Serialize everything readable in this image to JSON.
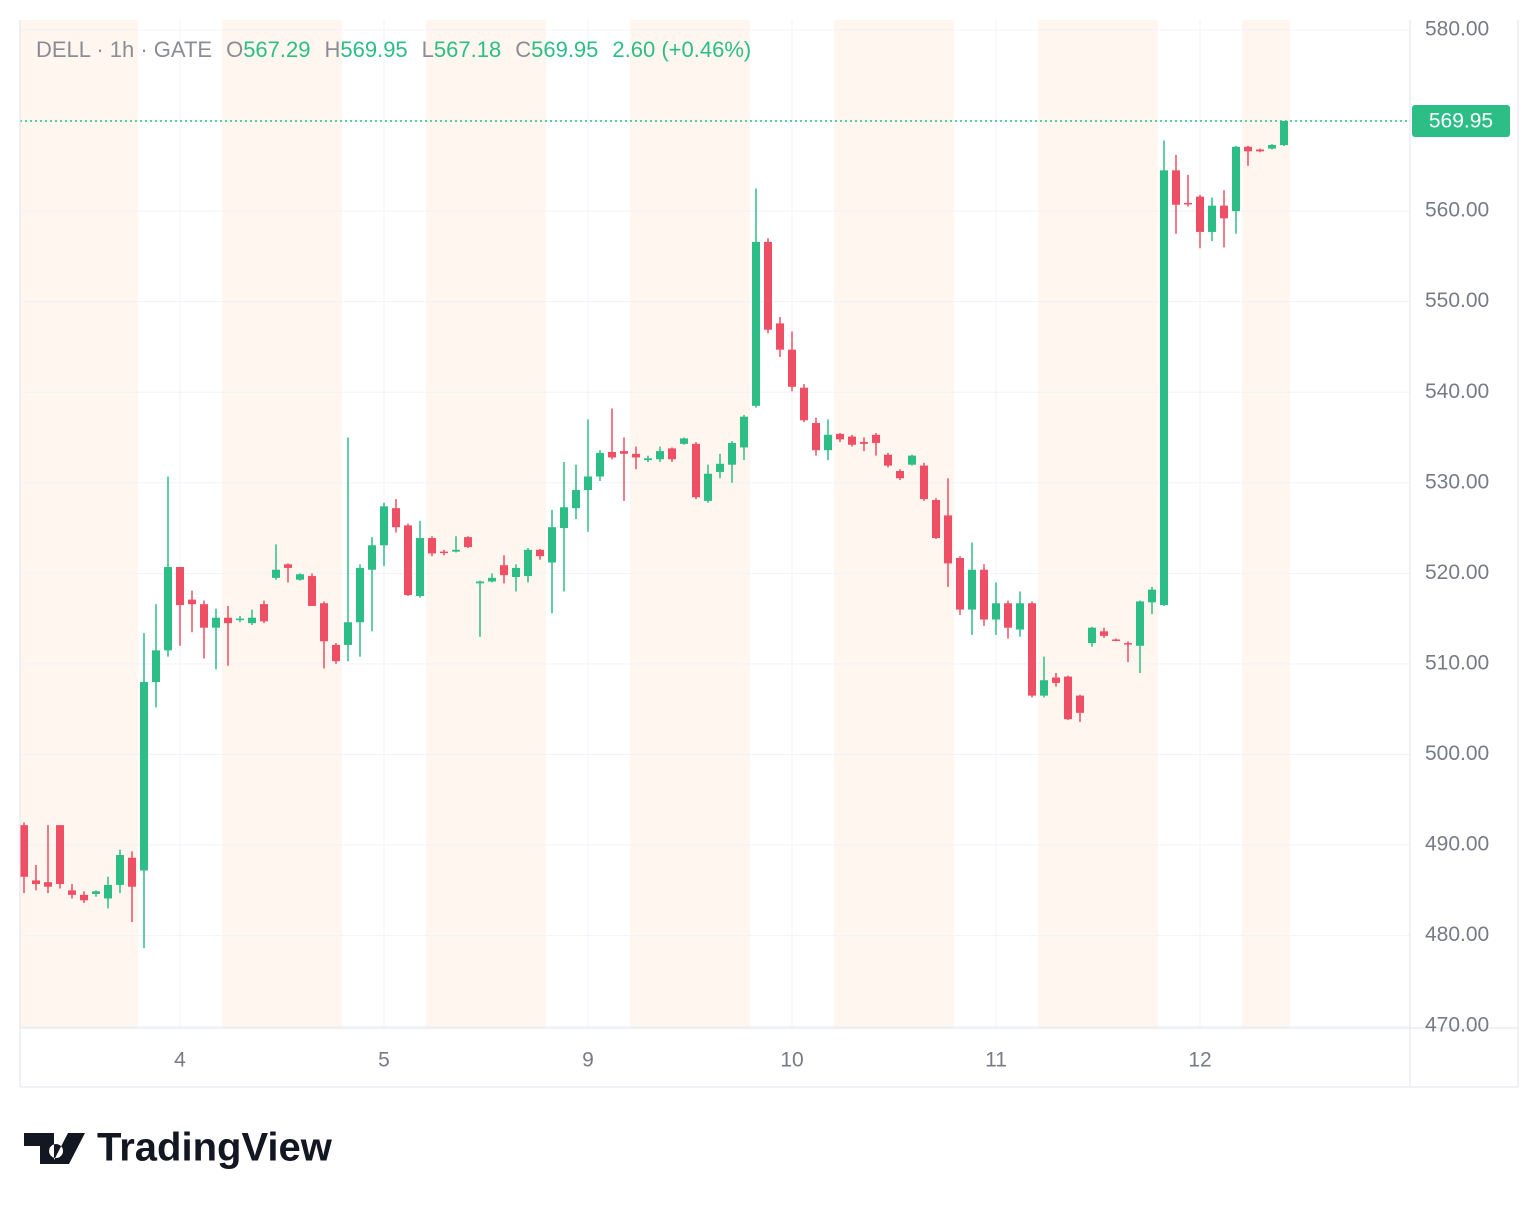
{
  "chart_data": {
    "type": "candlestick",
    "legend": {
      "symbol": "DELL · 1h · GATE",
      "fields": [
        {
          "label": "O",
          "value": "567.29"
        },
        {
          "label": "H",
          "value": "569.95"
        },
        {
          "label": "L",
          "value": "567.18"
        },
        {
          "label": "C",
          "value": "569.95"
        }
      ],
      "change": "2.60 (+0.46%)"
    },
    "categories": [
      null,
      null,
      null,
      null,
      null,
      null,
      null,
      null,
      null,
      null,
      null,
      null,
      null,
      "4",
      null,
      null,
      null,
      null,
      null,
      null,
      null,
      null,
      null,
      null,
      null,
      null,
      null,
      null,
      null,
      null,
      "5",
      null,
      null,
      null,
      null,
      null,
      null,
      null,
      null,
      null,
      null,
      null,
      null,
      null,
      null,
      null,
      null,
      "9",
      null,
      null,
      null,
      null,
      null,
      null,
      null,
      null,
      null,
      null,
      null,
      null,
      null,
      null,
      null,
      null,
      "10",
      null,
      null,
      null,
      null,
      null,
      null,
      null,
      null,
      null,
      null,
      null,
      null,
      null,
      null,
      null,
      null,
      "11",
      null,
      null,
      null,
      null,
      null,
      null,
      null,
      null,
      null,
      null,
      null,
      null,
      null,
      null,
      null,
      null,
      "12",
      null,
      null,
      null,
      null,
      null,
      null,
      null
    ],
    "extended_hours": [
      true,
      true,
      true,
      true,
      true,
      true,
      true,
      true,
      true,
      true,
      false,
      false,
      false,
      false,
      false,
      false,
      false,
      true,
      true,
      true,
      true,
      true,
      true,
      true,
      true,
      true,
      true,
      false,
      false,
      false,
      false,
      false,
      false,
      false,
      true,
      true,
      true,
      true,
      true,
      true,
      true,
      true,
      true,
      true,
      false,
      false,
      false,
      false,
      false,
      false,
      false,
      true,
      true,
      true,
      true,
      true,
      true,
      true,
      true,
      true,
      true,
      false,
      false,
      false,
      false,
      false,
      false,
      false,
      true,
      true,
      true,
      true,
      true,
      true,
      true,
      true,
      true,
      true,
      false,
      false,
      false,
      false,
      false,
      false,
      false,
      true,
      true,
      true,
      true,
      true,
      true,
      true,
      true,
      true,
      true,
      false,
      false,
      false,
      false,
      false,
      false,
      false,
      true,
      true,
      true,
      true
    ],
    "open": [
      492.2,
      486.1,
      485.9,
      492.2,
      485.0,
      484.5,
      484.6,
      484.1,
      485.6,
      488.6,
      487.2,
      508.0,
      511.5,
      520.7,
      517.1,
      516.6,
      514.0,
      515.1,
      514.9,
      514.5,
      516.6,
      519.5,
      521.0,
      519.3,
      519.7,
      516.7,
      512.1,
      512.1,
      514.6,
      520.4,
      523.1,
      527.2,
      525.3,
      517.5,
      523.9,
      522.4,
      522.4,
      524.0,
      518.9,
      519.1,
      520.9,
      519.6,
      519.7,
      522.6,
      521.2,
      525.0,
      527.2,
      529.2,
      530.7,
      533.4,
      533.5,
      533.2,
      532.5,
      532.6,
      533.8,
      534.3,
      534.3,
      528.0,
      531.2,
      532.0,
      533.9,
      538.5,
      556.6,
      547.6,
      544.7,
      540.5,
      536.6,
      533.6,
      535.4,
      535.1,
      534.5,
      535.3,
      533.1,
      531.3,
      532.0,
      531.9,
      528.1,
      526.4,
      521.7,
      516.0,
      520.4,
      514.9,
      516.7,
      513.8,
      516.7,
      506.5,
      508.5,
      508.6,
      506.5,
      512.3,
      513.6,
      512.7,
      512.3,
      512.0,
      516.8,
      516.5,
      564.5,
      560.9,
      561.6,
      557.7,
      560.6,
      560.0,
      567.1,
      566.8,
      566.9,
      567.29
    ],
    "high": [
      492.5,
      487.8,
      492.2,
      492.2,
      485.7,
      484.9,
      485.0,
      486.5,
      489.5,
      489.3,
      513.4,
      516.6,
      530.7,
      520.7,
      518.1,
      517.0,
      516.1,
      516.4,
      515.3,
      516.0,
      517.0,
      523.2,
      521.1,
      520.0,
      520.0,
      516.9,
      512.3,
      535.0,
      521.0,
      524.0,
      527.8,
      528.2,
      525.5,
      525.8,
      524.1,
      522.6,
      524.1,
      524.1,
      519.2,
      520.0,
      522.0,
      521.0,
      522.8,
      522.7,
      527.0,
      532.3,
      532.0,
      537.0,
      533.6,
      538.2,
      535.0,
      534.0,
      533.0,
      534.0,
      533.9,
      535.0,
      534.5,
      532.0,
      533.2,
      534.6,
      537.5,
      562.5,
      557.0,
      548.3,
      546.7,
      540.9,
      537.2,
      537.0,
      535.5,
      535.3,
      535.0,
      535.5,
      533.3,
      531.5,
      533.1,
      532.2,
      528.3,
      530.5,
      521.9,
      523.4,
      521.0,
      519.0,
      517.0,
      518.0,
      516.9,
      510.8,
      509.0,
      508.7,
      506.6,
      514.1,
      514.0,
      512.8,
      512.5,
      517.0,
      518.5,
      567.8,
      566.2,
      564.0,
      561.8,
      561.5,
      562.3,
      567.2,
      567.2,
      566.9,
      567.4,
      569.95
    ],
    "low": [
      484.7,
      485.0,
      484.7,
      485.2,
      484.1,
      483.6,
      484.3,
      483.0,
      484.7,
      481.5,
      478.6,
      505.2,
      510.8,
      512.0,
      513.5,
      510.6,
      509.4,
      509.8,
      514.6,
      514.3,
      514.5,
      519.3,
      519.0,
      519.2,
      516.4,
      509.5,
      510.0,
      510.3,
      510.8,
      513.6,
      520.8,
      524.5,
      517.5,
      517.3,
      521.9,
      522.0,
      522.3,
      522.8,
      513.0,
      519.0,
      518.9,
      518.0,
      519.0,
      521.5,
      515.6,
      518.0,
      526.0,
      524.6,
      530.2,
      532.6,
      528.0,
      531.5,
      532.3,
      532.3,
      532.3,
      534.2,
      528.2,
      527.8,
      530.5,
      530.0,
      532.5,
      538.3,
      546.5,
      543.9,
      540.1,
      536.7,
      533.0,
      532.5,
      534.5,
      534.0,
      533.5,
      533.0,
      531.7,
      530.3,
      531.9,
      528.0,
      523.8,
      518.5,
      515.4,
      513.2,
      514.2,
      513.2,
      512.8,
      513.0,
      506.3,
      506.3,
      507.5,
      503.8,
      503.6,
      511.9,
      512.9,
      512.5,
      510.2,
      509.0,
      515.5,
      516.4,
      557.5,
      560.5,
      555.9,
      556.7,
      556.0,
      557.5,
      565.0,
      566.5,
      566.8,
      567.18
    ],
    "close": [
      486.5,
      485.7,
      485.4,
      485.7,
      484.5,
      483.9,
      484.9,
      485.6,
      488.9,
      485.4,
      508.0,
      511.5,
      520.7,
      516.5,
      516.6,
      514.0,
      515.1,
      514.5,
      515.0,
      515.1,
      514.7,
      520.4,
      520.6,
      519.9,
      516.4,
      512.5,
      510.3,
      514.6,
      520.6,
      523.1,
      527.4,
      525.1,
      517.6,
      523.9,
      522.2,
      522.3,
      522.6,
      522.9,
      519.1,
      519.5,
      519.8,
      520.6,
      522.6,
      521.9,
      525.1,
      527.3,
      529.2,
      530.7,
      533.3,
      532.8,
      533.2,
      532.8,
      532.7,
      533.5,
      532.6,
      534.9,
      528.4,
      531.0,
      532.1,
      534.4,
      537.3,
      556.6,
      546.9,
      544.7,
      540.6,
      536.9,
      533.6,
      535.3,
      534.8,
      534.2,
      534.3,
      534.4,
      531.9,
      530.5,
      533.0,
      528.2,
      523.9,
      521.1,
      516.0,
      520.4,
      514.9,
      516.7,
      514.0,
      516.7,
      506.5,
      508.2,
      507.9,
      503.9,
      504.6,
      514.0,
      513.1,
      512.6,
      512.2,
      516.9,
      518.2,
      564.5,
      560.7,
      560.8,
      557.7,
      560.6,
      559.2,
      567.1,
      566.6,
      566.6,
      567.3,
      569.95
    ],
    "up_color": "#2dbd86",
    "down_color": "#ef4f64",
    "extended_color": "#fff6ef",
    "ylim": [
      469.8,
      581.1
    ],
    "yticks": [
      {
        "value": 470,
        "label": "470.00"
      },
      {
        "value": 480,
        "label": "480.00"
      },
      {
        "value": 490,
        "label": "490.00"
      },
      {
        "value": 500,
        "label": "500.00"
      },
      {
        "value": 510,
        "label": "510.00"
      },
      {
        "value": 520,
        "label": "520.00"
      },
      {
        "value": 530,
        "label": "530.00"
      },
      {
        "value": 540,
        "label": "540.00"
      },
      {
        "value": 550,
        "label": "550.00"
      },
      {
        "value": 560,
        "label": "560.00"
      },
      {
        "value": 570,
        "label": "570.00"
      },
      {
        "value": 580,
        "label": "580.00"
      }
    ],
    "price_line": {
      "value": 569.95,
      "label": "569.95"
    },
    "grid": true,
    "branding": "TradingView"
  }
}
